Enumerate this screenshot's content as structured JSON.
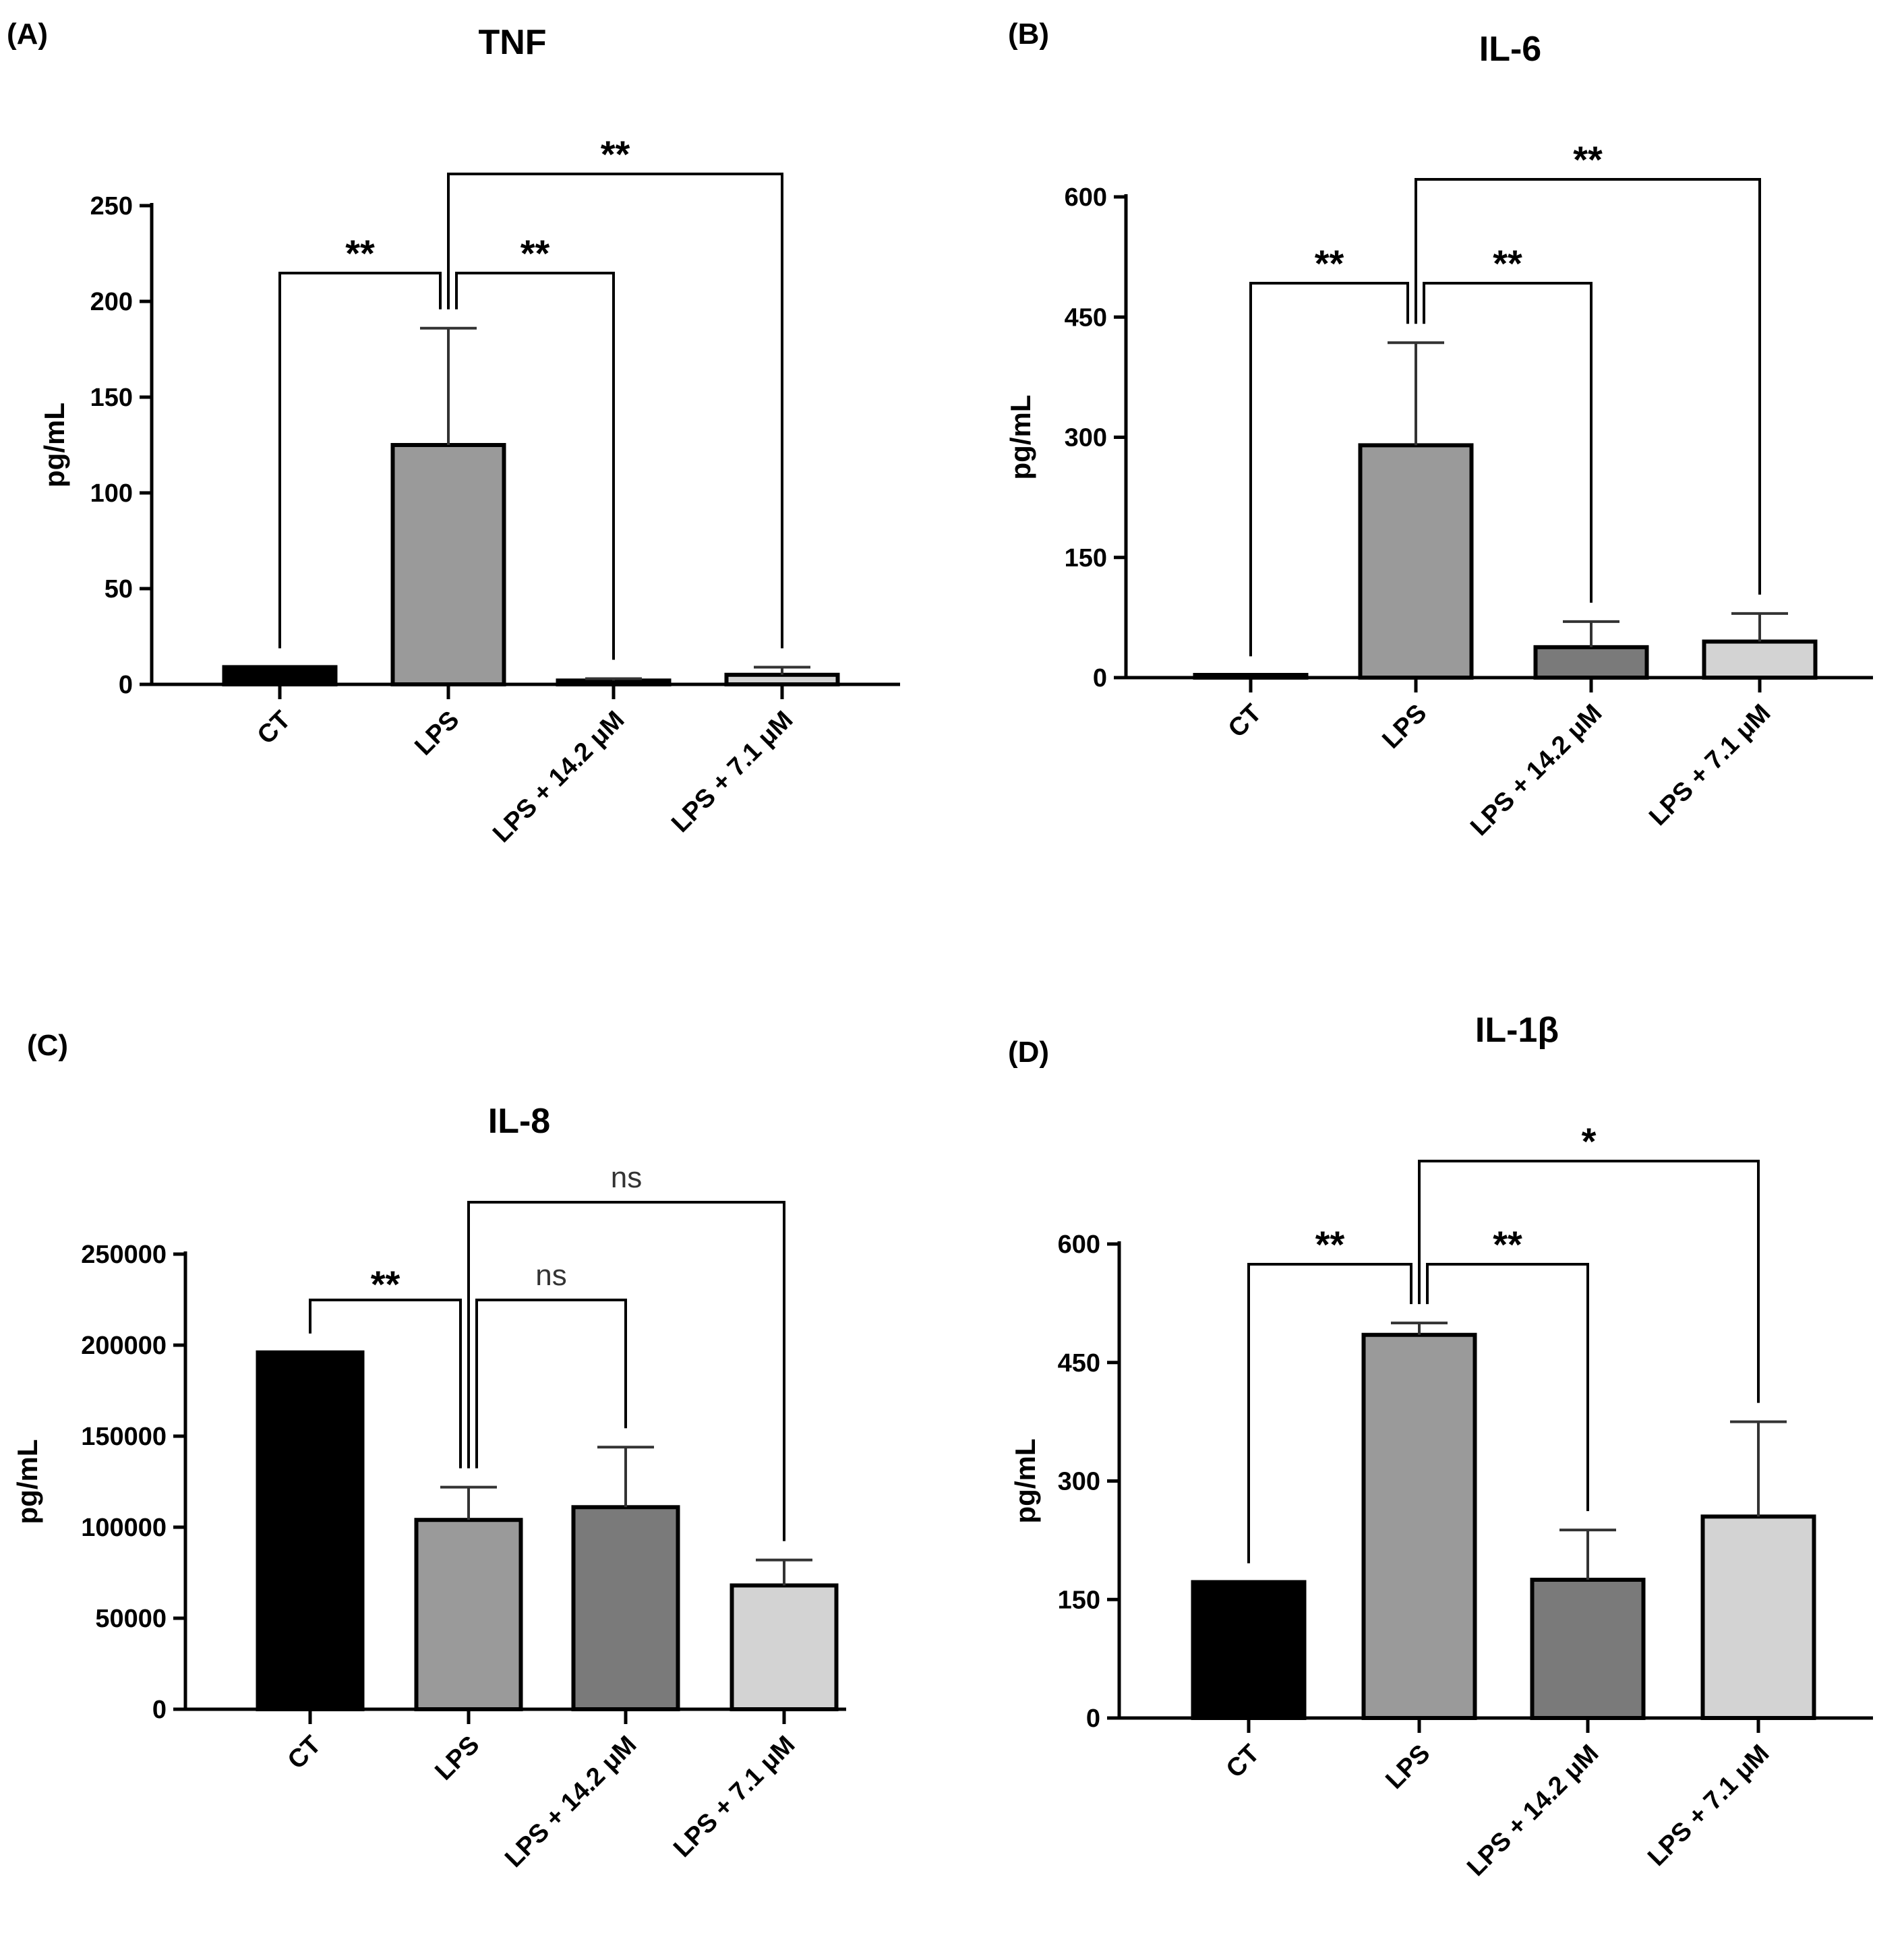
{
  "chart_data": [
    {
      "panel": "(A)",
      "type": "bar",
      "title": "TNF",
      "ylabel": "pg/mL",
      "xlabel": "",
      "ylim": [
        0,
        250
      ],
      "yticks": [
        0,
        50,
        100,
        150,
        200,
        250
      ],
      "categories": [
        "CT",
        "LPS",
        "LPS + 14.2 μM",
        "LPS + 7.1 μM"
      ],
      "values": [
        9,
        125,
        2,
        5
      ],
      "errors": [
        0,
        61,
        1,
        4
      ],
      "colors": [
        "#000000",
        "#9a9a9a",
        "#7a7a7a",
        "#d3d3d3"
      ],
      "comparisons": [
        {
          "from": 0,
          "to": 1,
          "label": "**",
          "tier": 1
        },
        {
          "from": 1,
          "to": 2,
          "label": "**",
          "tier": 1
        },
        {
          "from": 1,
          "to": 3,
          "label": "**",
          "tier": 2
        }
      ]
    },
    {
      "panel": "(B)",
      "type": "bar",
      "title": "IL-6",
      "ylabel": "pg/mL",
      "xlabel": "",
      "ylim": [
        0,
        600
      ],
      "yticks": [
        0,
        150,
        300,
        450,
        600
      ],
      "categories": [
        "CT",
        "LPS",
        "LPS + 14.2 μM",
        "LPS + 7.1 μM"
      ],
      "values": [
        3,
        290,
        38,
        45
      ],
      "errors": [
        0,
        128,
        32,
        35
      ],
      "colors": [
        "#000000",
        "#9a9a9a",
        "#7a7a7a",
        "#d3d3d3"
      ],
      "comparisons": [
        {
          "from": 0,
          "to": 1,
          "label": "**",
          "tier": 1
        },
        {
          "from": 1,
          "to": 2,
          "label": "**",
          "tier": 1
        },
        {
          "from": 1,
          "to": 3,
          "label": "**",
          "tier": 2
        }
      ]
    },
    {
      "panel": "(C)",
      "type": "bar",
      "title": "IL-8",
      "ylabel": "pg/mL",
      "xlabel": "",
      "ylim": [
        0,
        250000
      ],
      "yticks": [
        0,
        50000,
        100000,
        150000,
        200000,
        250000
      ],
      "categories": [
        "CT",
        "LPS",
        "LPS + 14.2 μM",
        "LPS + 7.1 μM"
      ],
      "values": [
        196000,
        104000,
        111000,
        68000
      ],
      "errors": [
        0,
        18000,
        33000,
        14000
      ],
      "colors": [
        "#000000",
        "#9a9a9a",
        "#7a7a7a",
        "#d3d3d3"
      ],
      "comparisons": [
        {
          "from": 0,
          "to": 1,
          "label": "**",
          "tier": 1
        },
        {
          "from": 1,
          "to": 2,
          "label": "ns",
          "tier": 1
        },
        {
          "from": 1,
          "to": 3,
          "label": "ns",
          "tier": 2
        }
      ]
    },
    {
      "panel": "(D)",
      "type": "bar",
      "title": "IL-1β",
      "ylabel": "pg/mL",
      "xlabel": "",
      "ylim": [
        0,
        600
      ],
      "yticks": [
        0,
        150,
        300,
        450,
        600
      ],
      "categories": [
        "CT",
        "LPS",
        "LPS + 14.2 μM",
        "LPS + 7.1 μM"
      ],
      "values": [
        172,
        485,
        175,
        255
      ],
      "errors": [
        0,
        15,
        63,
        120
      ],
      "colors": [
        "#000000",
        "#9a9a9a",
        "#7a7a7a",
        "#d3d3d3"
      ],
      "comparisons": [
        {
          "from": 0,
          "to": 1,
          "label": "**",
          "tier": 1
        },
        {
          "from": 1,
          "to": 2,
          "label": "**",
          "tier": 1
        },
        {
          "from": 1,
          "to": 3,
          "label": "*",
          "tier": 2
        }
      ]
    }
  ]
}
